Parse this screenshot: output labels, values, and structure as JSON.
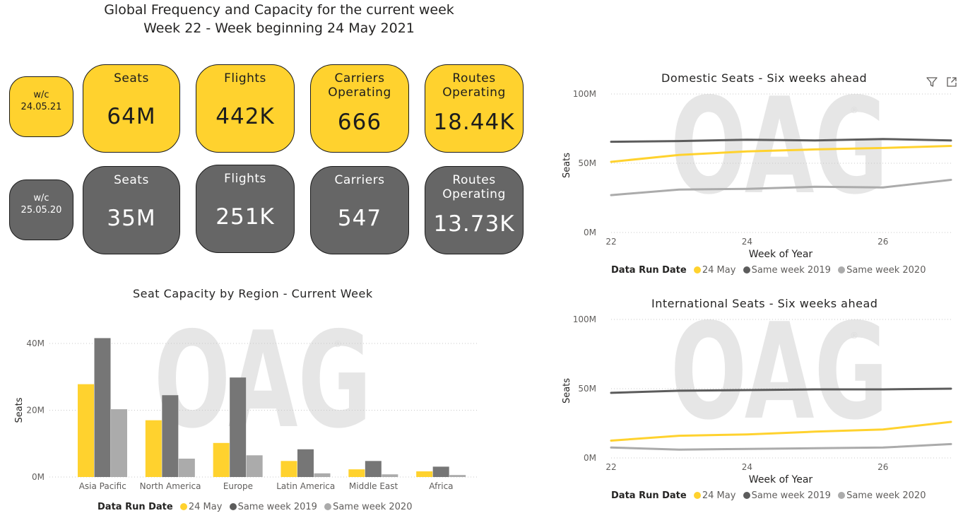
{
  "header": {
    "title": "Global Frequency and Capacity for the current week",
    "subtitle": "Week 22 - Week beginning 24 May 2021"
  },
  "current_row": {
    "week": [
      "w/c",
      "24.05.21"
    ],
    "cards": [
      {
        "label": [
          "Seats"
        ],
        "value": "64M"
      },
      {
        "label": [
          "Flights"
        ],
        "value": "442K"
      },
      {
        "label": [
          "Carriers",
          "Operating"
        ],
        "value": "666"
      },
      {
        "label": [
          "Routes",
          "Operating"
        ],
        "value": "18.44K"
      }
    ]
  },
  "previous_row": {
    "week": [
      "w/c",
      "25.05.20"
    ],
    "cards": [
      {
        "label": [
          "Seats"
        ],
        "value": "35M"
      },
      {
        "label": [
          "Flights"
        ],
        "value": "251K"
      },
      {
        "label": [
          "Carriers"
        ],
        "value": "547"
      },
      {
        "label": [
          "Routes",
          "Operating"
        ],
        "value": "13.73K"
      }
    ]
  },
  "watermark": "OAG",
  "colors": {
    "current": "#FFD22E",
    "y2019": "#767676",
    "y2020": "#ABABAB",
    "card_current": "#FFD22E",
    "card_previous": "#666666"
  },
  "legend": {
    "title": "Data Run Date",
    "items": [
      {
        "label": "24 May",
        "color": "#FFD22E"
      },
      {
        "label": "Same week 2019",
        "color": "#5C5C5C"
      },
      {
        "label": "Same week 2020",
        "color": "#ABABAB"
      }
    ]
  },
  "icons": {
    "filter": "filter-icon",
    "focus": "focus-mode-icon"
  },
  "chart_data": [
    {
      "type": "bar",
      "title": "Seat Capacity by Region - Current Week",
      "ylabel": "Seats",
      "xlabel": "",
      "ylim": [
        0,
        40
      ],
      "yticks": [
        0,
        20,
        40
      ],
      "ytick_labels": [
        "0M",
        "20M",
        "40M"
      ],
      "categories": [
        "Asia Pacific",
        "North America",
        "Europe",
        "Latin America",
        "Middle East",
        "Africa"
      ],
      "series": [
        {
          "name": "24 May",
          "values": [
            27.8,
            17.0,
            10.2,
            4.8,
            2.3,
            1.7
          ]
        },
        {
          "name": "Same week 2019",
          "values": [
            41.6,
            24.5,
            29.8,
            8.3,
            4.8,
            3.1
          ]
        },
        {
          "name": "Same week 2020",
          "values": [
            20.3,
            5.5,
            6.5,
            1.1,
            0.8,
            0.6
          ]
        }
      ]
    },
    {
      "type": "line",
      "title": "Domestic Seats - Six weeks ahead",
      "xlabel": "Week of Year",
      "ylabel": "Seats",
      "x": [
        22,
        23,
        24,
        25,
        26,
        27
      ],
      "xlim": [
        22,
        27
      ],
      "xticks": [
        22,
        24,
        26
      ],
      "ylim": [
        0,
        100
      ],
      "yticks": [
        0,
        50,
        100
      ],
      "ytick_labels": [
        "0M",
        "50M",
        "100M"
      ],
      "series": [
        {
          "name": "24 May",
          "values": [
            51,
            56,
            58.5,
            60,
            61,
            62.5
          ]
        },
        {
          "name": "Same week 2019",
          "values": [
            65.5,
            66,
            67,
            66.5,
            67.5,
            66.5
          ]
        },
        {
          "name": "Same week 2020",
          "values": [
            27,
            31,
            31.5,
            33,
            32.5,
            38
          ]
        }
      ]
    },
    {
      "type": "line",
      "title": "International Seats - Six weeks ahead",
      "xlabel": "Week of Year",
      "ylabel": "Seats",
      "x": [
        22,
        23,
        24,
        25,
        26,
        27
      ],
      "xlim": [
        22,
        27
      ],
      "xticks": [
        22,
        24,
        26
      ],
      "ylim": [
        0,
        100
      ],
      "yticks": [
        0,
        50,
        100
      ],
      "ytick_labels": [
        "0M",
        "50M",
        "100M"
      ],
      "series": [
        {
          "name": "24 May",
          "values": [
            12.5,
            16,
            17,
            19,
            20.5,
            26
          ]
        },
        {
          "name": "Same week 2019",
          "values": [
            47,
            48.5,
            49,
            49.5,
            49.5,
            50
          ]
        },
        {
          "name": "Same week 2020",
          "values": [
            7.5,
            6,
            6.5,
            7,
            7.5,
            10
          ]
        }
      ]
    }
  ]
}
